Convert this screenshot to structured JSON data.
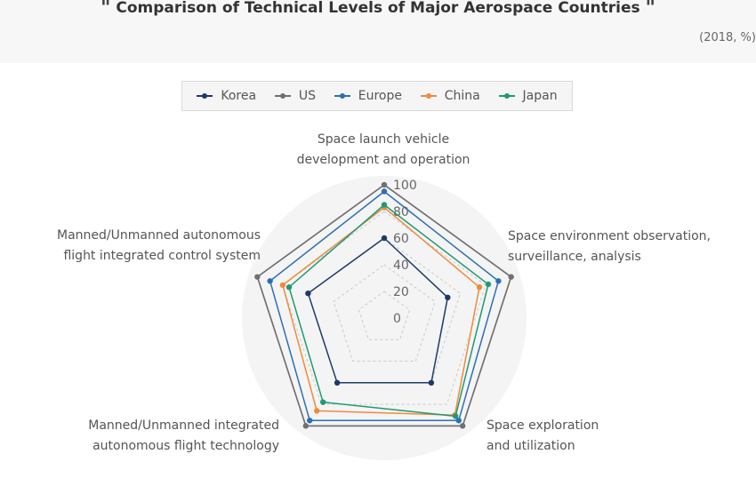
{
  "header": {
    "title_open": "\"",
    "title": "Comparison of Technical Levels of Major Aerospace Countries",
    "title_close": "\"",
    "subtitle": "(2018, %)"
  },
  "chart_data": {
    "type": "radar",
    "axes": [
      [
        "Space launch vehicle",
        "development and operation"
      ],
      [
        "Space environment observation,",
        "surveillance, analysis"
      ],
      [
        "Space exploration",
        "and utilization"
      ],
      [
        "Manned/Unmanned integrated",
        "autonomous flight technology"
      ],
      [
        "Manned/Unmanned autonomous",
        "flight integrated control system"
      ]
    ],
    "ticks": [
      0,
      20,
      40,
      60,
      80,
      100
    ],
    "range": [
      0,
      100
    ],
    "grid": true,
    "legend_position": "top",
    "series": [
      {
        "name": "Korea",
        "color": "#1b3a6b",
        "values": [
          60,
          50,
          60,
          60,
          60
        ]
      },
      {
        "name": "US",
        "color": "#707070",
        "values": [
          100,
          100,
          100,
          100,
          100
        ]
      },
      {
        "name": "Europe",
        "color": "#2c6fb5",
        "values": [
          95,
          90,
          95,
          95,
          90
        ]
      },
      {
        "name": "China",
        "color": "#f08a3c",
        "values": [
          83,
          75,
          90,
          86,
          80
        ]
      },
      {
        "name": "Japan",
        "color": "#1f9a76",
        "values": [
          85,
          82,
          91,
          78,
          75
        ]
      }
    ]
  }
}
